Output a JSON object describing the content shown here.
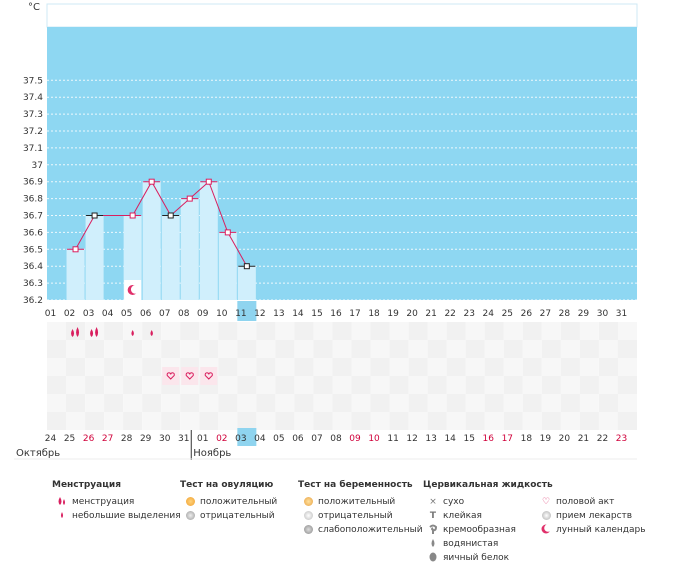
{
  "chart_data": {
    "type": "line",
    "unit_label": "°C",
    "y_ticks": [
      "37.5",
      "37.4",
      "37.3",
      "37.2",
      "37.1",
      "37",
      "36.9",
      "36.8",
      "36.7",
      "36.6",
      "36.5",
      "36.4",
      "36.3",
      "36.2"
    ],
    "ylim": [
      36.2,
      37.57
    ],
    "cycle_days": [
      "01",
      "02",
      "03",
      "04",
      "05",
      "06",
      "07",
      "08",
      "09",
      "10",
      "11",
      "12",
      "13",
      "14",
      "15",
      "16",
      "17",
      "18",
      "19",
      "20",
      "21",
      "22",
      "23",
      "24",
      "25",
      "26",
      "27",
      "28",
      "29",
      "30",
      "31"
    ],
    "calendar_dates": [
      "24",
      "25",
      "26",
      "27",
      "28",
      "29",
      "30",
      "31",
      "01",
      "02",
      "03",
      "04",
      "05",
      "06",
      "07",
      "08",
      "09",
      "10",
      "11",
      "12",
      "13",
      "14",
      "15",
      "16",
      "17",
      "18",
      "19",
      "20",
      "21",
      "22",
      "23"
    ],
    "weekend_dates": [
      "26",
      "27",
      "02",
      "03",
      "09",
      "10",
      "16",
      "17",
      "23"
    ],
    "month_labels": [
      {
        "label": "Октябрь",
        "at_day": 1
      },
      {
        "label": "Ноябрь",
        "at_day": 9
      }
    ],
    "today_day": 11,
    "series": [
      {
        "temperature": [
          {
            "day": 2,
            "value": 36.5
          },
          {
            "day": 3,
            "value": 36.7
          },
          {
            "day": 5,
            "value": 36.7
          },
          {
            "day": 6,
            "value": 36.9
          },
          {
            "day": 7,
            "value": 36.7
          },
          {
            "day": 8,
            "value": 36.8
          },
          {
            "day": 9,
            "value": 36.9
          },
          {
            "day": 10,
            "value": 36.6
          },
          {
            "day": 11,
            "value": 36.4
          }
        ],
        "black_markers": [
          3,
          7,
          11
        ]
      }
    ],
    "moon_day": 5,
    "menstruation_days": [
      2,
      3
    ],
    "light_bleeding_days": [
      5,
      6
    ],
    "intercourse_days": [
      7,
      8,
      9
    ]
  },
  "legend": {
    "menstruation": {
      "title": "Менструация",
      "items": [
        "менструация",
        "небольшие выделения"
      ]
    },
    "ovulation": {
      "title": "Тест на овуляцию",
      "items": [
        "положительный",
        "отрицательный"
      ]
    },
    "pregnancy": {
      "title": "Тест на беременность",
      "items": [
        "положительный",
        "отрицательный",
        "слабоположительный"
      ]
    },
    "cervical": {
      "title": "Цервикальная жидкость",
      "items": [
        "сухо",
        "клейкая",
        "кремообразная",
        "водянистая",
        "яичный белок"
      ]
    },
    "other": {
      "items": [
        "половой акт",
        "прием лекарств",
        "лунный календарь"
      ]
    }
  },
  "colors": {
    "sky": "#8ed7f2",
    "bar": "#d0effc",
    "line": "#d91f5f",
    "accent": "#cc0033",
    "today": "#8fd4ef",
    "weekend": "#d0003a"
  }
}
